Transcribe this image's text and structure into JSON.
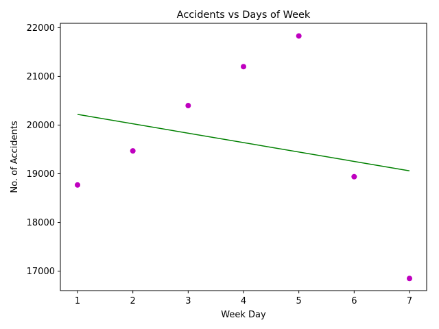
{
  "chart_data": {
    "type": "scatter",
    "title": "Accidents vs Days of Week",
    "xlabel": "Week Day",
    "ylabel": "No. of Accidents",
    "xlim": [
      0.69,
      7.31
    ],
    "ylim": [
      16600,
      22090
    ],
    "xticks": [
      1,
      2,
      3,
      4,
      5,
      6,
      7
    ],
    "yticks": [
      17000,
      18000,
      19000,
      20000,
      21000,
      22000
    ],
    "grid": false,
    "legend": "none",
    "series": [
      {
        "kind": "scatter",
        "color": "#bf00bf",
        "x": [
          1,
          2,
          3,
          4,
          5,
          6,
          7
        ],
        "y": [
          18770,
          19470,
          20400,
          21200,
          21830,
          18940,
          16850
        ]
      },
      {
        "kind": "line",
        "color": "#008000",
        "x": [
          1,
          7
        ],
        "y": [
          20220,
          19060
        ]
      }
    ]
  }
}
